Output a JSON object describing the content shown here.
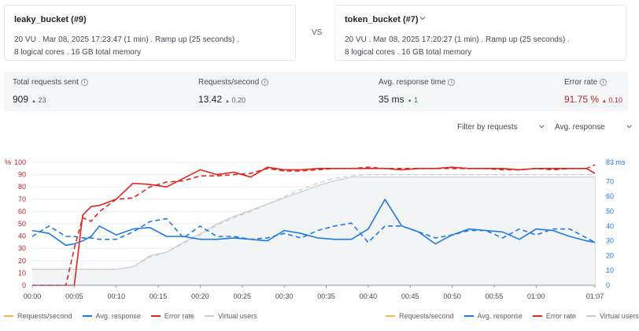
{
  "left_run": {
    "name": "leaky_bucket (#9)",
    "line1": "20 VU  .  Mar 08, 2025 17:23:47 (1 min)  .  Ramp up (25 seconds)  .",
    "line2": "8 logical cores  .  16 GB total memory"
  },
  "vs_label": "VS",
  "right_run": {
    "name": "token_bucket (#7)",
    "dropdown_icon": "chevron-down-icon",
    "line1": "20 VU  .  Mar 08, 2025 17:20:27 (1 min)  .  Ramp up (25 seconds)  .",
    "line2": "8 logical cores  .  16 GB total memory"
  },
  "stats": [
    {
      "label": "Total requests sent",
      "value": "909",
      "delta": "23",
      "delta_arrow": "▲",
      "delta_color": "neutral"
    },
    {
      "label": "Requests/second",
      "value": "13.42",
      "delta": "0.20",
      "delta_arrow": "▲",
      "delta_color": "neutral"
    },
    {
      "label": "Avg. response time",
      "value": "35 ms",
      "delta": "1",
      "delta_arrow": "▼",
      "delta_color": "green"
    },
    {
      "label": "Error rate",
      "value": "91.75 %",
      "delta": "0.10",
      "delta_arrow": "▲",
      "delta_color": "red"
    }
  ],
  "filters": {
    "requests": "Filter by requests",
    "metric": "Avg. response"
  },
  "colors": {
    "requests": "#f2b84b",
    "response": "#1f7ae0",
    "error": "#e0251b",
    "vu": "#c9cccf"
  },
  "chart_data": {
    "type": "line",
    "x_ticks": [
      "00:00",
      "00:05",
      "00:10",
      "00:15",
      "00:20",
      "00:25",
      "00:30",
      "00:35",
      "00:40",
      "00:45",
      "00:50",
      "00:55",
      "01:00",
      "01:07"
    ],
    "x": [
      0,
      2,
      4,
      5,
      6,
      7,
      8,
      10,
      12,
      14,
      16,
      18,
      20,
      22,
      24,
      26,
      28,
      30,
      32,
      34,
      36,
      38,
      40,
      42,
      44,
      46,
      48,
      50,
      52,
      54,
      56,
      58,
      60,
      62,
      64,
      66,
      67
    ],
    "left_axis": {
      "label": "%",
      "ylim": [
        0,
        100
      ],
      "ticks": [
        0,
        10,
        20,
        30,
        40,
        50,
        60,
        70,
        80,
        90,
        100
      ]
    },
    "right_axis": {
      "label": "83 ms",
      "ylim": [
        0,
        83
      ],
      "ticks": [
        0,
        10,
        20,
        30,
        40,
        50,
        60,
        70
      ]
    },
    "series": [
      {
        "name": "Avg. response",
        "run": "leaky_bucket (#9)",
        "style": "solid",
        "axis": "right",
        "values": [
          37,
          35,
          27,
          28,
          30,
          33,
          40,
          34,
          38,
          39,
          33,
          33,
          31,
          31,
          32,
          31,
          30,
          37,
          35,
          32,
          31,
          31,
          38,
          58,
          40,
          36,
          28,
          34,
          38,
          37,
          36,
          31,
          38,
          37,
          33,
          30,
          29
        ]
      },
      {
        "name": "Avg. response",
        "run": "token_bucket (#7)",
        "style": "dashed",
        "axis": "right",
        "values": [
          33,
          40,
          33,
          33,
          32,
          32,
          31,
          31,
          36,
          43,
          45,
          32,
          40,
          33,
          33,
          31,
          32,
          35,
          32,
          37,
          40,
          42,
          29,
          40,
          40,
          36,
          32,
          34,
          37,
          37,
          32,
          38,
          34,
          38,
          38,
          32,
          29
        ]
      },
      {
        "name": "Error rate",
        "run": "leaky_bucket (#9)",
        "style": "solid",
        "axis": "left",
        "values": [
          0,
          0,
          0,
          0,
          57,
          64,
          65,
          70,
          83,
          82,
          80,
          87,
          94,
          90,
          92,
          88,
          96,
          94,
          94,
          95,
          95,
          95,
          95,
          95,
          94,
          95,
          95,
          96,
          95,
          95,
          95,
          94,
          95,
          95,
          95,
          95,
          91
        ]
      },
      {
        "name": "Error rate",
        "run": "token_bucket (#7)",
        "style": "dashed",
        "axis": "left",
        "values": [
          0,
          0,
          0,
          30,
          55,
          52,
          60,
          70,
          71,
          80,
          84,
          85,
          89,
          89,
          90,
          91,
          95,
          93,
          93,
          94,
          95,
          95,
          96,
          95,
          95,
          95,
          95,
          95,
          95,
          95,
          94,
          94,
          95,
          94,
          95,
          95,
          98
        ]
      },
      {
        "name": "Virtual users",
        "run": "leaky_bucket (#9)",
        "style": "solid",
        "axis": "left",
        "values": [
          13,
          13,
          13,
          13,
          13,
          13,
          13,
          13,
          15,
          24,
          27,
          35,
          42,
          50,
          56,
          61,
          66,
          71,
          76,
          81,
          85,
          88,
          88,
          88,
          88,
          88,
          88,
          88,
          88,
          88,
          88,
          88,
          88,
          88,
          88,
          88,
          88
        ]
      },
      {
        "name": "Virtual users",
        "run": "token_bucket (#7)",
        "style": "dashed",
        "axis": "left",
        "values": [
          13,
          13,
          13,
          13,
          13,
          13,
          13,
          13,
          15,
          23,
          27,
          34,
          41,
          49,
          55,
          60,
          66,
          72,
          78,
          83,
          87,
          89,
          90,
          90,
          90,
          90,
          90,
          90,
          90,
          90,
          90,
          90,
          90,
          90,
          90,
          90,
          90
        ]
      }
    ]
  },
  "legend_left": [
    {
      "name": "Requests/second",
      "series": "requests",
      "style": "solid"
    },
    {
      "name": "Avg. response",
      "series": "response",
      "style": "solid"
    },
    {
      "name": "Error rate",
      "series": "error",
      "style": "solid"
    },
    {
      "name": "Virtual users",
      "series": "vu",
      "style": "solid"
    }
  ],
  "legend_right": [
    {
      "name": "Requests/second",
      "series": "requests",
      "style": "dashed"
    },
    {
      "name": "Avg. response",
      "series": "response",
      "style": "dashed"
    },
    {
      "name": "Error rate",
      "series": "error",
      "style": "dashed"
    },
    {
      "name": "Virtual users",
      "series": "vu",
      "style": "dashed"
    }
  ]
}
